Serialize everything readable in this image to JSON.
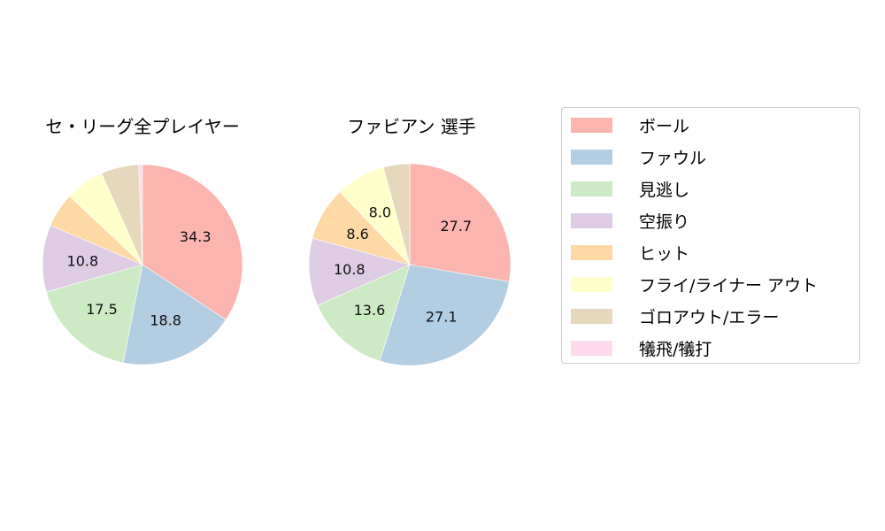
{
  "chart_data": [
    {
      "type": "pie",
      "title": "セ・リーグ全プレイヤー",
      "categories": [
        "ボール",
        "ファウル",
        "見逃し",
        "空振り",
        "ヒット",
        "フライ/ライナー アウト",
        "ゴロアウト/エラー",
        "犠飛/犠打"
      ],
      "values": [
        34.3,
        18.8,
        17.5,
        10.8,
        5.6,
        6.3,
        6.1,
        0.6
      ],
      "labels_shown": [
        "34.3",
        "18.8",
        "17.5",
        "10.8",
        "",
        "",
        "",
        ""
      ]
    },
    {
      "type": "pie",
      "title": "ファビアン  選手",
      "categories": [
        "ボール",
        "ファウル",
        "見逃し",
        "空振り",
        "ヒット",
        "フライ/ライナー アウト",
        "ゴロアウト/エラー",
        "犠飛/犠打"
      ],
      "values": [
        27.7,
        27.1,
        13.6,
        10.8,
        8.6,
        8.0,
        4.2,
        0.0
      ],
      "labels_shown": [
        "27.7",
        "27.1",
        "13.6",
        "10.8",
        "8.6",
        "8.0",
        "",
        ""
      ]
    }
  ],
  "legend": {
    "items": [
      {
        "label": "ボール",
        "color": "#fbb4ae"
      },
      {
        "label": "ファウル",
        "color": "#b3cde3"
      },
      {
        "label": "見逃し",
        "color": "#ccebc5"
      },
      {
        "label": "空振り",
        "color": "#decbe4"
      },
      {
        "label": "ヒット",
        "color": "#fed9a6"
      },
      {
        "label": "フライ/ライナー アウト",
        "color": "#ffffcc"
      },
      {
        "label": "ゴロアウト/エラー",
        "color": "#e5d8bd"
      },
      {
        "label": "犠飛/犠打",
        "color": "#fddaec"
      }
    ]
  }
}
